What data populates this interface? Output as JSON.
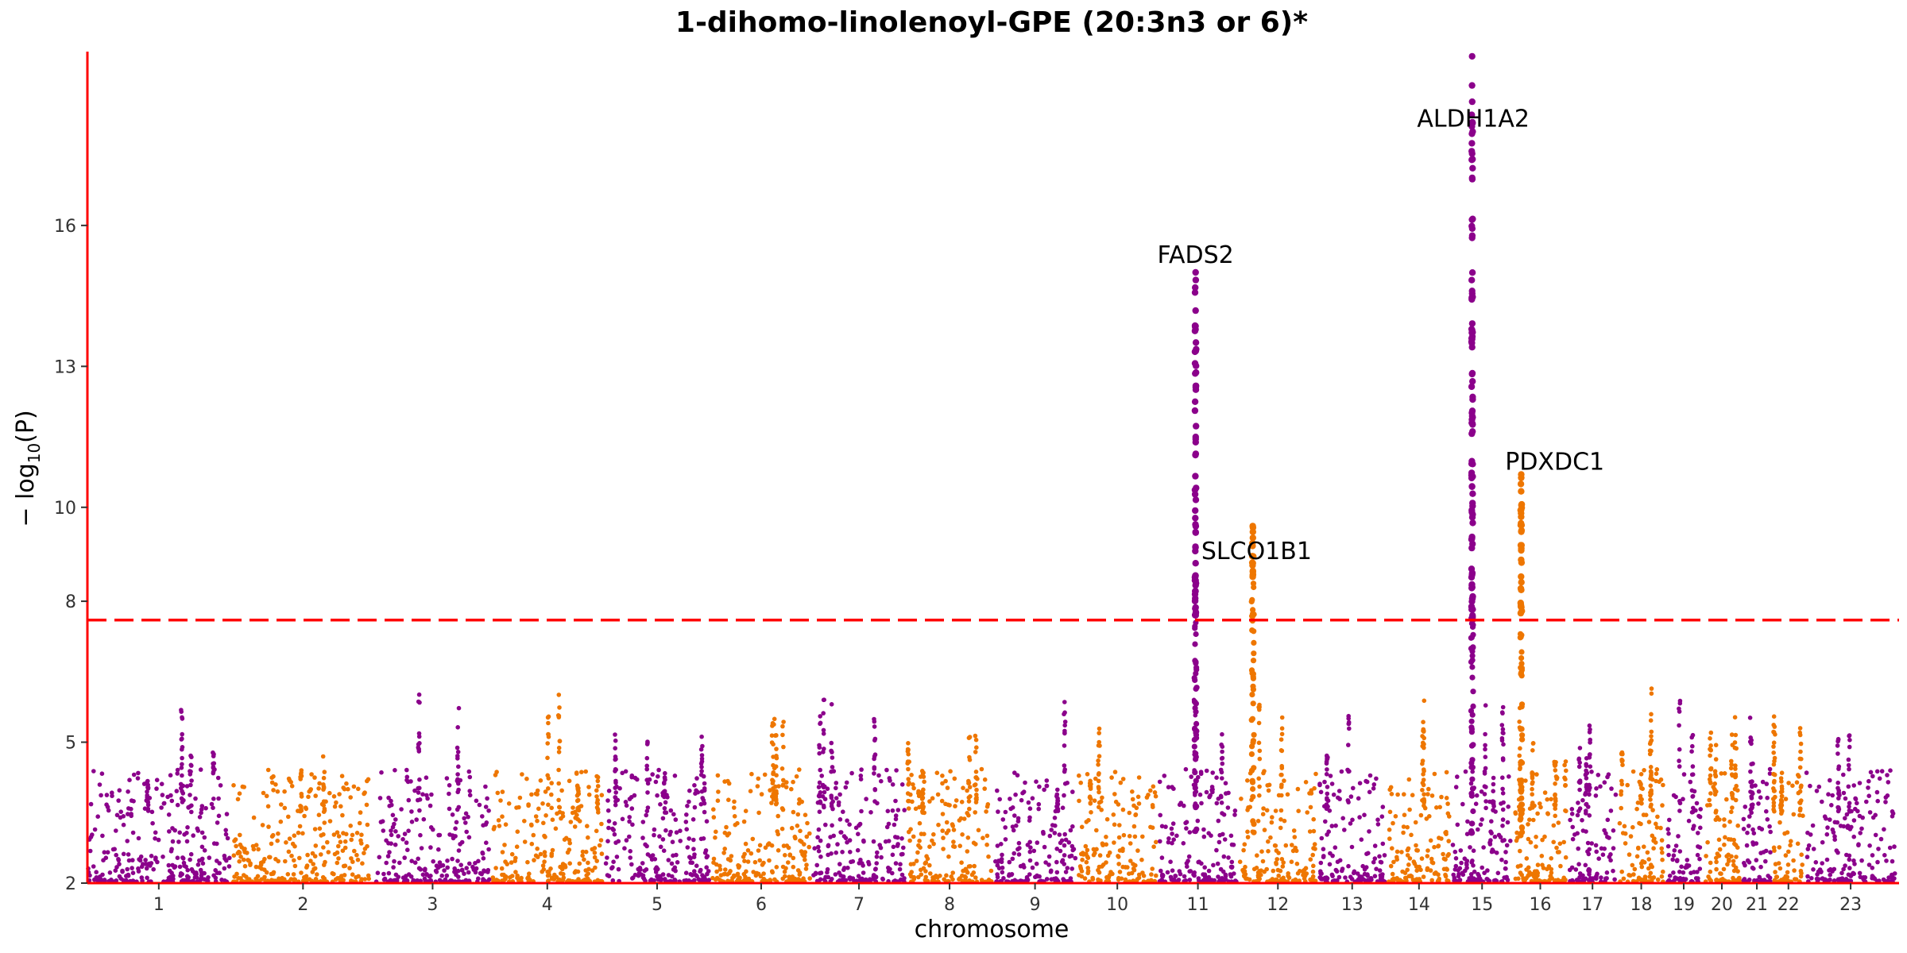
{
  "chart_data": {
    "type": "scatter",
    "title": "1-dihomo-linolenoyl-GPE (20:3n3 or 6)*",
    "xlabel": "chromosome",
    "ylabel": "− log",
    "ylabel_subscript": "10",
    "ylabel_suffix": "(P)",
    "ylim": [
      2,
      19.7
    ],
    "yticks": [
      2,
      5,
      8,
      10,
      13,
      16
    ],
    "significance_line": 7.6,
    "colors": {
      "odd": "#8b008b",
      "even": "#ee7600",
      "axis": "#ff0000",
      "threshold": "#ff0000"
    },
    "chromosomes": [
      {
        "label": "1",
        "length": 249
      },
      {
        "label": "2",
        "length": 243
      },
      {
        "label": "3",
        "length": 198
      },
      {
        "label": "4",
        "length": 191
      },
      {
        "label": "5",
        "length": 181
      },
      {
        "label": "6",
        "length": 171
      },
      {
        "label": "7",
        "length": 159
      },
      {
        "label": "8",
        "length": 146
      },
      {
        "label": "9",
        "length": 141
      },
      {
        "label": "10",
        "length": 135
      },
      {
        "label": "11",
        "length": 135
      },
      {
        "label": "12",
        "length": 133
      },
      {
        "label": "13",
        "length": 115
      },
      {
        "label": "14",
        "length": 107
      },
      {
        "label": "15",
        "length": 102
      },
      {
        "label": "16",
        "length": 90
      },
      {
        "label": "17",
        "length": 81
      },
      {
        "label": "18",
        "length": 78
      },
      {
        "label": "19",
        "length": 59
      },
      {
        "label": "20",
        "length": 63
      },
      {
        "label": "21",
        "length": 48
      },
      {
        "label": "22",
        "length": 51
      },
      {
        "label": "23",
        "length": 155
      }
    ],
    "peaks": [
      {
        "gene": "FADS2",
        "chrom": "11",
        "pos": 0.47,
        "max": 15.0,
        "min": 7.7
      },
      {
        "gene": "SLCO1B1",
        "chrom": "12",
        "pos": 0.17,
        "max": 9.6,
        "min": 8.5
      },
      {
        "gene": "ALDH1A2",
        "chrom": "15",
        "pos": 0.33,
        "max": 19.6,
        "min": 7.6
      },
      {
        "gene": "PDXDC1",
        "chrom": "16",
        "pos": 0.13,
        "max": 10.7,
        "min": 7.6
      }
    ],
    "annotations": [
      {
        "label": "FADS2",
        "chrom": "11",
        "pos": 0.47,
        "y": 15.2
      },
      {
        "label": "SLCO1B1",
        "chrom": "12",
        "pos": 0.22,
        "y": 8.9
      },
      {
        "label": "ALDH1A2",
        "chrom": "15",
        "pos": 0.35,
        "y": 18.1
      },
      {
        "label": "PDXDC1",
        "chrom": "16",
        "pos": 0.78,
        "y": 10.8
      }
    ]
  }
}
